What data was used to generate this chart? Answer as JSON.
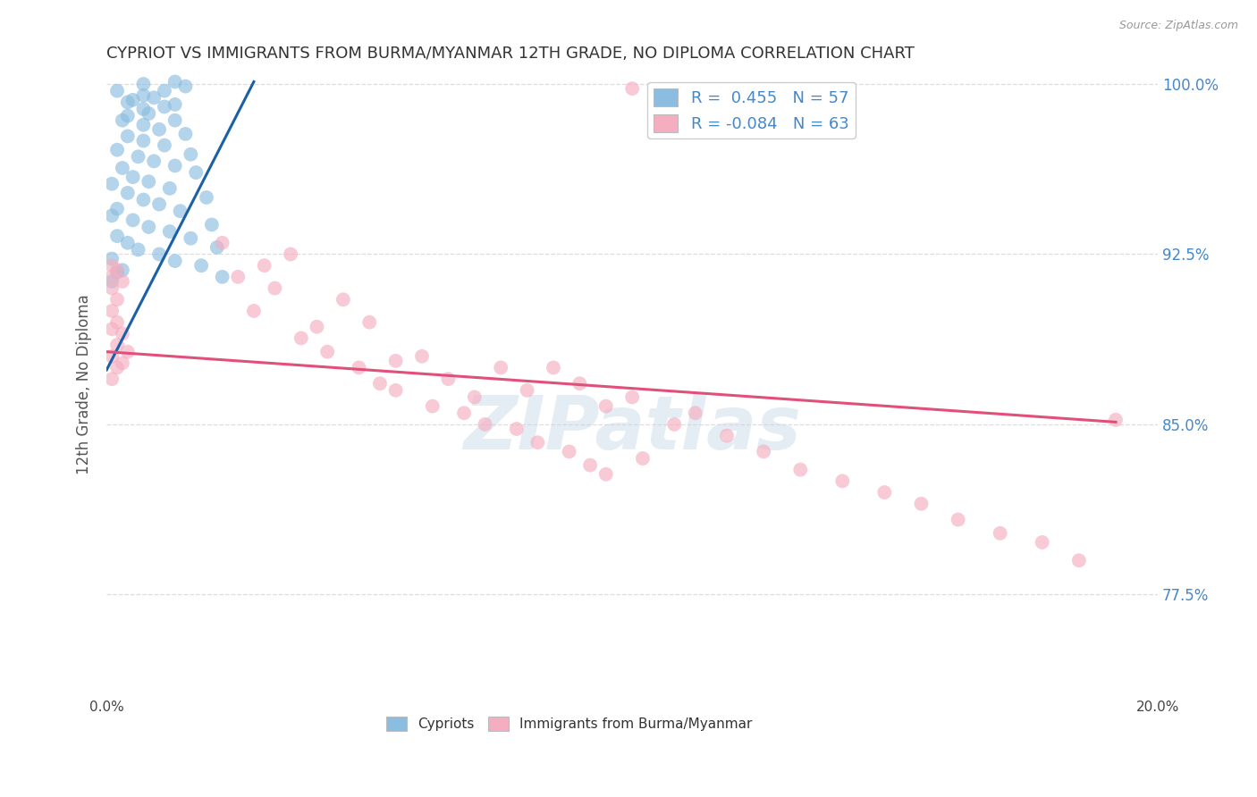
{
  "title": "CYPRIOT VS IMMIGRANTS FROM BURMA/MYANMAR 12TH GRADE, NO DIPLOMA CORRELATION CHART",
  "source": "Source: ZipAtlas.com",
  "ylabel": "12th Grade, No Diploma",
  "xlim": [
    0.0,
    0.2
  ],
  "ylim": [
    0.73,
    1.005
  ],
  "xticks": [
    0.0,
    0.05,
    0.1,
    0.15,
    0.2
  ],
  "xticklabels": [
    "0.0%",
    "",
    "",
    "",
    "20.0%"
  ],
  "yticks": [
    0.775,
    0.85,
    0.925,
    1.0
  ],
  "yticklabels": [
    "77.5%",
    "85.0%",
    "92.5%",
    "100.0%"
  ],
  "blue_R": 0.455,
  "blue_N": 57,
  "pink_R": -0.084,
  "pink_N": 63,
  "blue_color": "#8bbde0",
  "pink_color": "#f5aec0",
  "blue_line_color": "#1a5fa8",
  "pink_line_color": "#e0507a",
  "legend_label_blue": "Cypriots",
  "legend_label_pink": "Immigrants from Burma/Myanmar",
  "watermark": "ZIPatlas",
  "grid_color": "#dddddd",
  "bg_color": "#ffffff",
  "title_color": "#333333",
  "axis_label_color": "#555555",
  "tick_color_right": "#4488cc",
  "watermark_color": "#c5d5e8",
  "watermark_alpha": 0.45,
  "blue_line_x": [
    0.0,
    0.028
  ],
  "blue_line_y": [
    0.874,
    1.001
  ],
  "pink_line_x": [
    0.0,
    0.192
  ],
  "pink_line_y": [
    0.882,
    0.851
  ],
  "blue_dots_x": [
    0.007,
    0.013,
    0.002,
    0.015,
    0.007,
    0.011,
    0.005,
    0.009,
    0.013,
    0.004,
    0.007,
    0.011,
    0.004,
    0.008,
    0.013,
    0.003,
    0.007,
    0.01,
    0.015,
    0.004,
    0.007,
    0.011,
    0.002,
    0.016,
    0.006,
    0.009,
    0.013,
    0.003,
    0.017,
    0.005,
    0.008,
    0.001,
    0.012,
    0.004,
    0.019,
    0.007,
    0.01,
    0.002,
    0.014,
    0.001,
    0.005,
    0.02,
    0.008,
    0.012,
    0.002,
    0.016,
    0.004,
    0.021,
    0.006,
    0.01,
    0.001,
    0.013,
    0.018,
    0.003,
    0.002,
    0.022,
    0.001
  ],
  "blue_dots_y": [
    1.0,
    1.001,
    0.997,
    0.999,
    0.995,
    0.997,
    0.993,
    0.994,
    0.991,
    0.992,
    0.989,
    0.99,
    0.986,
    0.987,
    0.984,
    0.984,
    0.982,
    0.98,
    0.978,
    0.977,
    0.975,
    0.973,
    0.971,
    0.969,
    0.968,
    0.966,
    0.964,
    0.963,
    0.961,
    0.959,
    0.957,
    0.956,
    0.954,
    0.952,
    0.95,
    0.949,
    0.947,
    0.945,
    0.944,
    0.942,
    0.94,
    0.938,
    0.937,
    0.935,
    0.933,
    0.932,
    0.93,
    0.928,
    0.927,
    0.925,
    0.923,
    0.922,
    0.92,
    0.918,
    0.917,
    0.915,
    0.913
  ],
  "pink_dots_x": [
    0.001,
    0.002,
    0.001,
    0.003,
    0.001,
    0.002,
    0.001,
    0.002,
    0.001,
    0.003,
    0.002,
    0.004,
    0.001,
    0.003,
    0.002,
    0.001,
    0.022,
    0.03,
    0.025,
    0.035,
    0.028,
    0.04,
    0.032,
    0.045,
    0.037,
    0.05,
    0.042,
    0.055,
    0.048,
    0.052,
    0.06,
    0.065,
    0.055,
    0.07,
    0.062,
    0.075,
    0.068,
    0.072,
    0.08,
    0.085,
    0.078,
    0.09,
    0.082,
    0.095,
    0.088,
    0.092,
    0.1,
    0.108,
    0.095,
    0.112,
    0.102,
    0.118,
    0.125,
    0.132,
    0.14,
    0.148,
    0.155,
    0.162,
    0.17,
    0.178,
    0.185,
    0.192,
    0.1
  ],
  "pink_dots_y": [
    0.92,
    0.918,
    0.915,
    0.913,
    0.91,
    0.905,
    0.9,
    0.895,
    0.892,
    0.89,
    0.885,
    0.882,
    0.88,
    0.877,
    0.875,
    0.87,
    0.93,
    0.92,
    0.915,
    0.925,
    0.9,
    0.893,
    0.91,
    0.905,
    0.888,
    0.895,
    0.882,
    0.878,
    0.875,
    0.868,
    0.88,
    0.87,
    0.865,
    0.862,
    0.858,
    0.875,
    0.855,
    0.85,
    0.865,
    0.875,
    0.848,
    0.868,
    0.842,
    0.858,
    0.838,
    0.832,
    0.862,
    0.85,
    0.828,
    0.855,
    0.835,
    0.845,
    0.838,
    0.83,
    0.825,
    0.82,
    0.815,
    0.808,
    0.802,
    0.798,
    0.79,
    0.852,
    0.998
  ]
}
